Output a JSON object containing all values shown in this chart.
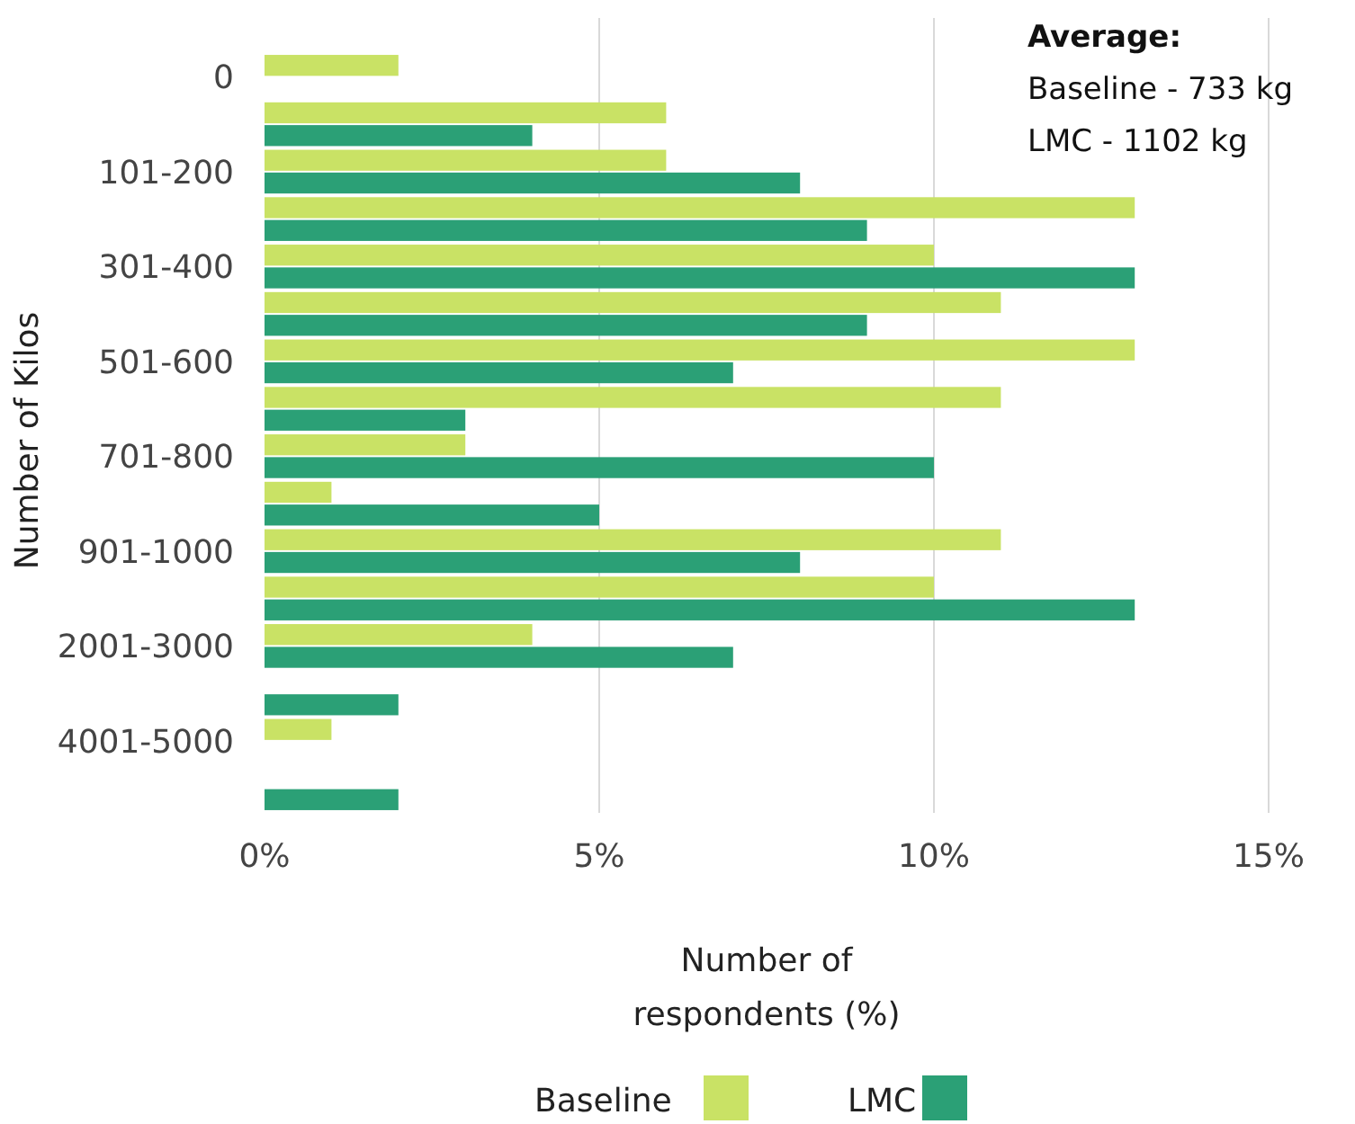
{
  "chart_data": {
    "type": "bar",
    "orientation": "horizontal",
    "categories": [
      "0",
      null,
      "101-200",
      null,
      "301-400",
      null,
      "501-600",
      null,
      "701-800",
      null,
      "901-1000",
      null,
      "2001-3000",
      null,
      "4001-5000",
      null
    ],
    "series": [
      {
        "name": "Baseline",
        "color": "#c9e265",
        "values": [
          2,
          6,
          6,
          13,
          10,
          11,
          13,
          11,
          3,
          1,
          11,
          10,
          4,
          0,
          1,
          0
        ]
      },
      {
        "name": "LMC",
        "color": "#2ba076",
        "values": [
          0,
          4,
          8,
          9,
          13,
          9,
          7,
          3,
          10,
          5,
          8,
          13,
          7,
          2,
          0,
          2
        ]
      }
    ],
    "xlim": [
      0,
      15
    ],
    "xticks": [
      {
        "value": 0,
        "label": "0%"
      },
      {
        "value": 5,
        "label": "5%"
      },
      {
        "value": 10,
        "label": "10%"
      },
      {
        "value": 15,
        "label": "15%"
      }
    ],
    "xlabel": "Number of respondents (%)",
    "ylabel": "Number of Kilos",
    "grid": "x",
    "legend": "bottom",
    "annotations": [
      "Average:",
      "Baseline - 733 kg",
      "LMC - 1102 kg"
    ]
  }
}
